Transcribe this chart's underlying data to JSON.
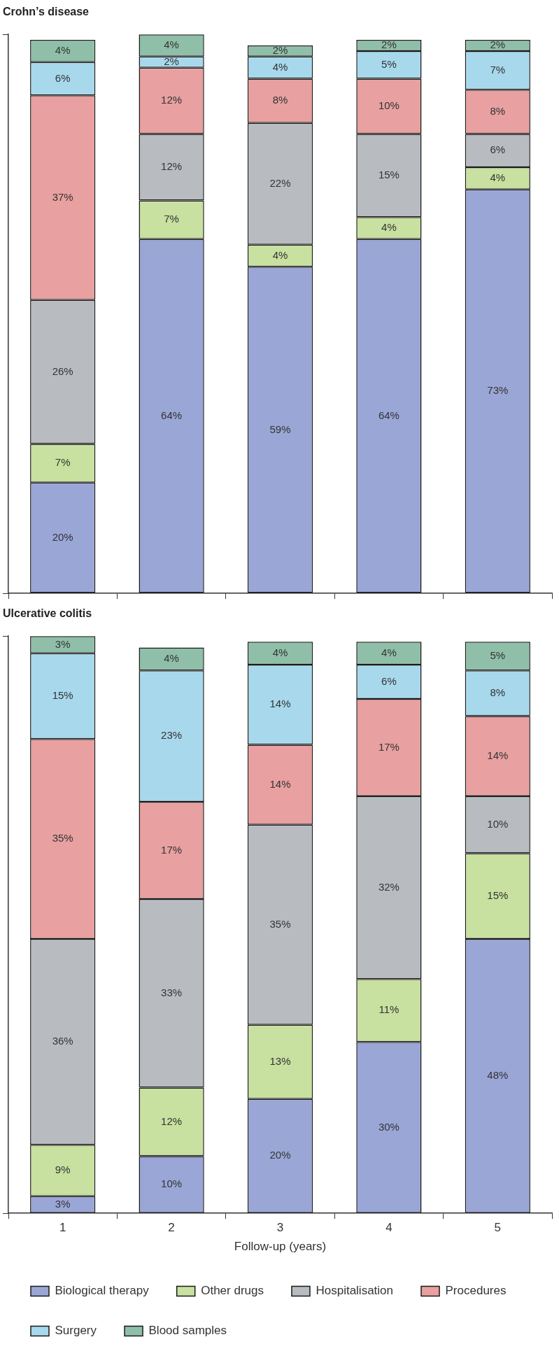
{
  "chart_data": [
    {
      "type": "bar",
      "title": "Crohn’s disease",
      "stacked": true,
      "categories": [
        "1",
        "2",
        "3",
        "4",
        "5"
      ],
      "tick_labels": false,
      "grid": false,
      "legend": false,
      "series": [
        {
          "color": "#9aa6d6",
          "values": [
            20,
            64,
            59,
            64,
            73
          ],
          "value_labels": [
            "20%",
            "64%",
            "59%",
            "64%",
            "73%"
          ]
        },
        {
          "color": "#c8e0a0",
          "values": [
            7,
            7,
            4,
            4,
            4
          ],
          "value_labels": [
            "7%",
            "7%",
            "4%",
            "4%",
            "4%"
          ]
        },
        {
          "color": "#b8bcc0",
          "values": [
            26,
            12,
            22,
            15,
            6
          ],
          "value_labels": [
            "26%",
            "12%",
            "22%",
            "15%",
            "6%"
          ]
        },
        {
          "color": "#e8a0a0",
          "values": [
            37,
            12,
            8,
            10,
            8
          ],
          "value_labels": [
            "37%",
            "12%",
            "8%",
            "10%",
            "8%"
          ]
        },
        {
          "color": "#a8d8ec",
          "values": [
            6,
            2,
            4,
            5,
            7
          ],
          "value_labels": [
            "6%",
            "2%",
            "4%",
            "5%",
            "7%"
          ]
        },
        {
          "color": "#8fbfa8",
          "values": [
            4,
            4,
            2,
            2,
            2
          ],
          "value_labels": [
            "4%",
            "4%",
            "2%",
            "2%",
            "2%"
          ]
        }
      ]
    },
    {
      "type": "bar",
      "title": "Ulcerative colitis",
      "xlabel": "Follow-up (years)",
      "stacked": true,
      "categories": [
        "1",
        "2",
        "3",
        "4",
        "5"
      ],
      "tick_labels": "x",
      "grid": false,
      "legend": "bottom",
      "series": [
        {
          "name": "Biological therapy",
          "color": "#9aa6d6",
          "values": [
            3,
            10,
            20,
            30,
            48
          ],
          "value_labels": [
            "3%",
            "10%",
            "20%",
            "30%",
            "48%"
          ]
        },
        {
          "name": "Other drugs",
          "color": "#c8e0a0",
          "values": [
            9,
            12,
            13,
            11,
            15
          ],
          "value_labels": [
            "9%",
            "12%",
            "13%",
            "11%",
            "15%"
          ]
        },
        {
          "name": "Hospitalisation",
          "color": "#b8bcc0",
          "values": [
            36,
            33,
            35,
            32,
            10
          ],
          "value_labels": [
            "36%",
            "33%",
            "35%",
            "32%",
            "10%"
          ]
        },
        {
          "name": "Procedures",
          "color": "#e8a0a0",
          "values": [
            35,
            17,
            14,
            17,
            14
          ],
          "value_labels": [
            "35%",
            "17%",
            "14%",
            "17%",
            "14%"
          ]
        },
        {
          "name": "Surgery",
          "color": "#a8d8ec",
          "values": [
            15,
            23,
            14,
            6,
            8
          ],
          "value_labels": [
            "15%",
            "23%",
            "14%",
            "6%",
            "8%"
          ]
        },
        {
          "name": "Blood samples",
          "color": "#8fbfa8",
          "values": [
            3,
            4,
            4,
            4,
            5
          ],
          "value_labels": [
            "3%",
            "4%",
            "4%",
            "4%",
            "5%"
          ]
        }
      ]
    }
  ]
}
